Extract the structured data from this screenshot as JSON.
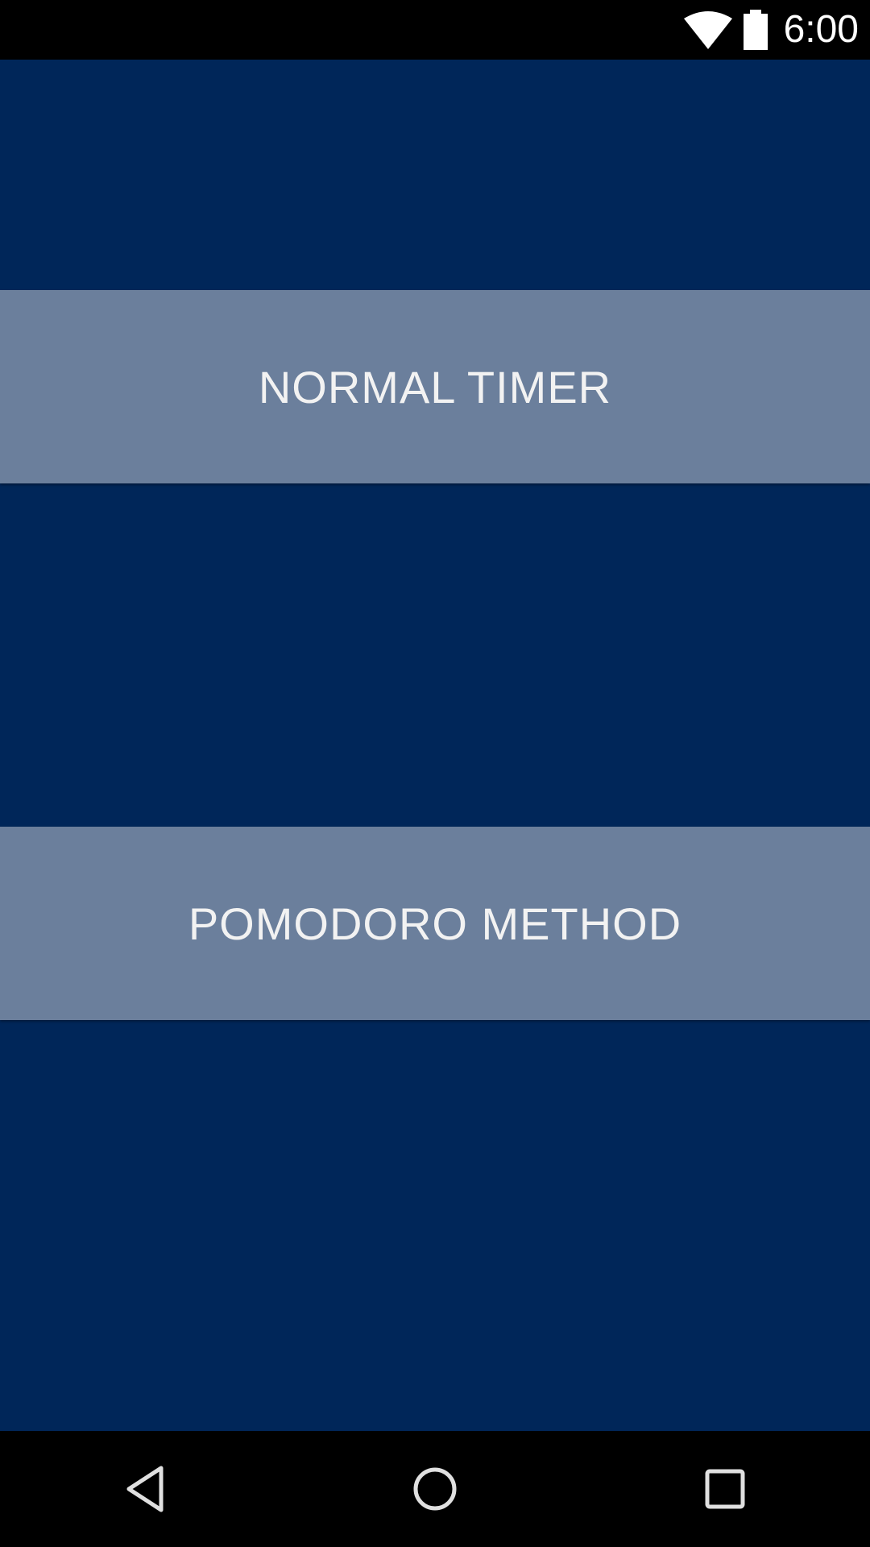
{
  "status_bar": {
    "time": "6:00",
    "icons": [
      "wifi-icon",
      "battery-icon"
    ]
  },
  "main": {
    "buttons": [
      {
        "label": "NORMAL TIMER"
      },
      {
        "label": "POMODORO METHOD"
      }
    ]
  },
  "nav_bar": {
    "icons": [
      "back-icon",
      "home-icon",
      "recents-icon"
    ]
  },
  "colors": {
    "background": "#002659",
    "button": "#6b7f9c",
    "button_text": "#f2f2f2",
    "bars": "#000000"
  }
}
